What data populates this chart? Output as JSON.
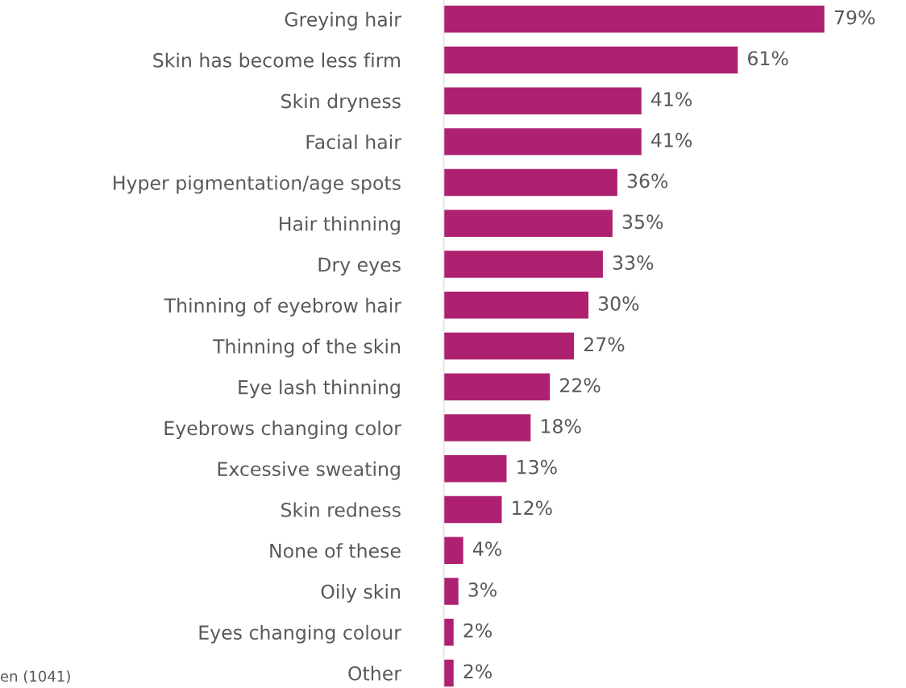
{
  "chart_data": {
    "type": "bar",
    "orientation": "horizontal",
    "categories": [
      "Greying hair",
      "Skin has become less firm",
      "Skin dryness",
      "Facial hair",
      "Hyper pigmentation/age spots",
      "Hair thinning",
      "Dry eyes",
      "Thinning of eyebrow hair",
      "Thinning of the skin",
      "Eye lash thinning",
      "Eyebrows changing color",
      "Excessive sweating",
      "Skin redness",
      "None of these",
      "Oily skin",
      "Eyes changing colour",
      "Other"
    ],
    "values": [
      79,
      61,
      41,
      41,
      36,
      35,
      33,
      30,
      27,
      22,
      18,
      13,
      12,
      4,
      3,
      2,
      2
    ],
    "value_labels": [
      "79%",
      "61%",
      "41%",
      "41%",
      "36%",
      "35%",
      "33%",
      "30%",
      "27%",
      "22%",
      "18%",
      "13%",
      "12%",
      "4%",
      "3%",
      "2%",
      "2%"
    ],
    "color": "#ad2170",
    "annotations": [
      "en (1041)"
    ]
  }
}
